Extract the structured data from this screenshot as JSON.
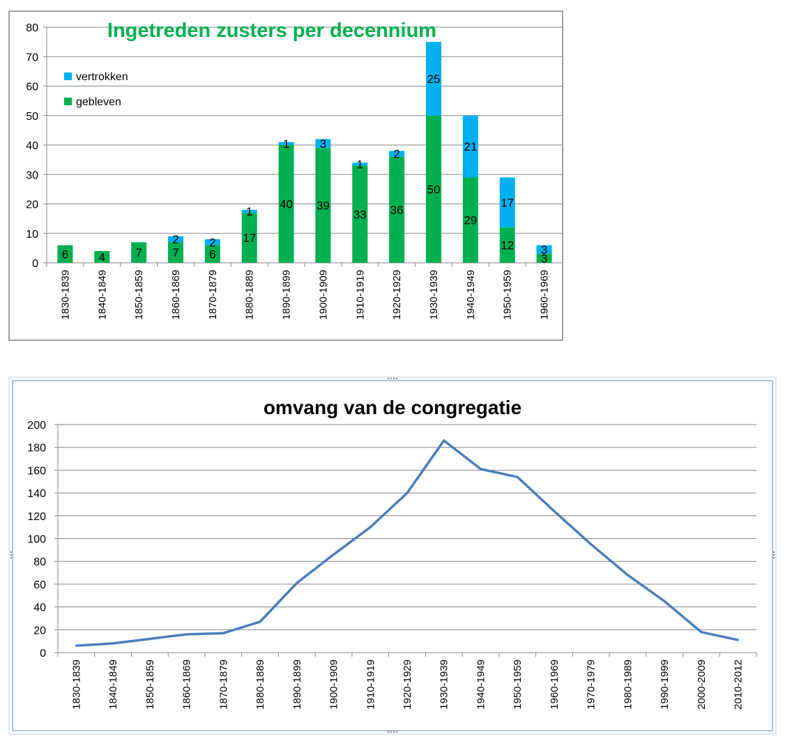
{
  "chart_data": [
    {
      "type": "bar",
      "stacked": true,
      "title": "Ingetreden zusters per decennium",
      "xlabel": "",
      "ylabel": "",
      "ylim": [
        0,
        80
      ],
      "yticks": [
        0,
        10,
        20,
        30,
        40,
        50,
        60,
        70,
        80
      ],
      "grid": true,
      "legend_position": "top-left",
      "categories": [
        "1830-1839",
        "1840-1849",
        "1850-1859",
        "1860-1869",
        "1870-1879",
        "1880-1889",
        "1890-1899",
        "1900-1909",
        "1910-1919",
        "1920-1929",
        "1930-1939",
        "1940-1949",
        "1950-1959",
        "1960-1969"
      ],
      "series": [
        {
          "name": "gebleven",
          "color": "#00b050",
          "values": [
            6,
            4,
            7,
            7,
            6,
            17,
            40,
            39,
            33,
            36,
            50,
            29,
            12,
            3
          ]
        },
        {
          "name": "vertrokken",
          "color": "#00b0f0",
          "values": [
            0,
            0,
            0,
            2,
            2,
            1,
            1,
            3,
            1,
            2,
            25,
            21,
            17,
            3
          ]
        }
      ],
      "title_color": "#00b050"
    },
    {
      "type": "line",
      "title": "omvang van de congregatie",
      "xlabel": "",
      "ylabel": "",
      "ylim": [
        0,
        200
      ],
      "yticks": [
        0,
        20,
        40,
        60,
        80,
        100,
        120,
        140,
        160,
        180,
        200
      ],
      "grid": true,
      "categories": [
        "1830-1839",
        "1840-1849",
        "1850-1859",
        "1860-1869",
        "1870-1879",
        "1880-1889",
        "1890-1899",
        "1900-1909",
        "1910-1919",
        "1920-1929",
        "1930-1939",
        "1940-1949",
        "1950-1959",
        "1960-1969",
        "1970-1979",
        "1980-1989",
        "1990-1999",
        "2000-2009",
        "2010-2012"
      ],
      "series": [
        {
          "color": "#4a7ebb",
          "values": [
            6,
            8,
            12,
            16,
            17,
            27,
            61,
            86,
            110,
            140,
            186,
            161,
            154,
            124,
            95,
            68,
            45,
            18,
            11
          ]
        }
      ]
    }
  ]
}
